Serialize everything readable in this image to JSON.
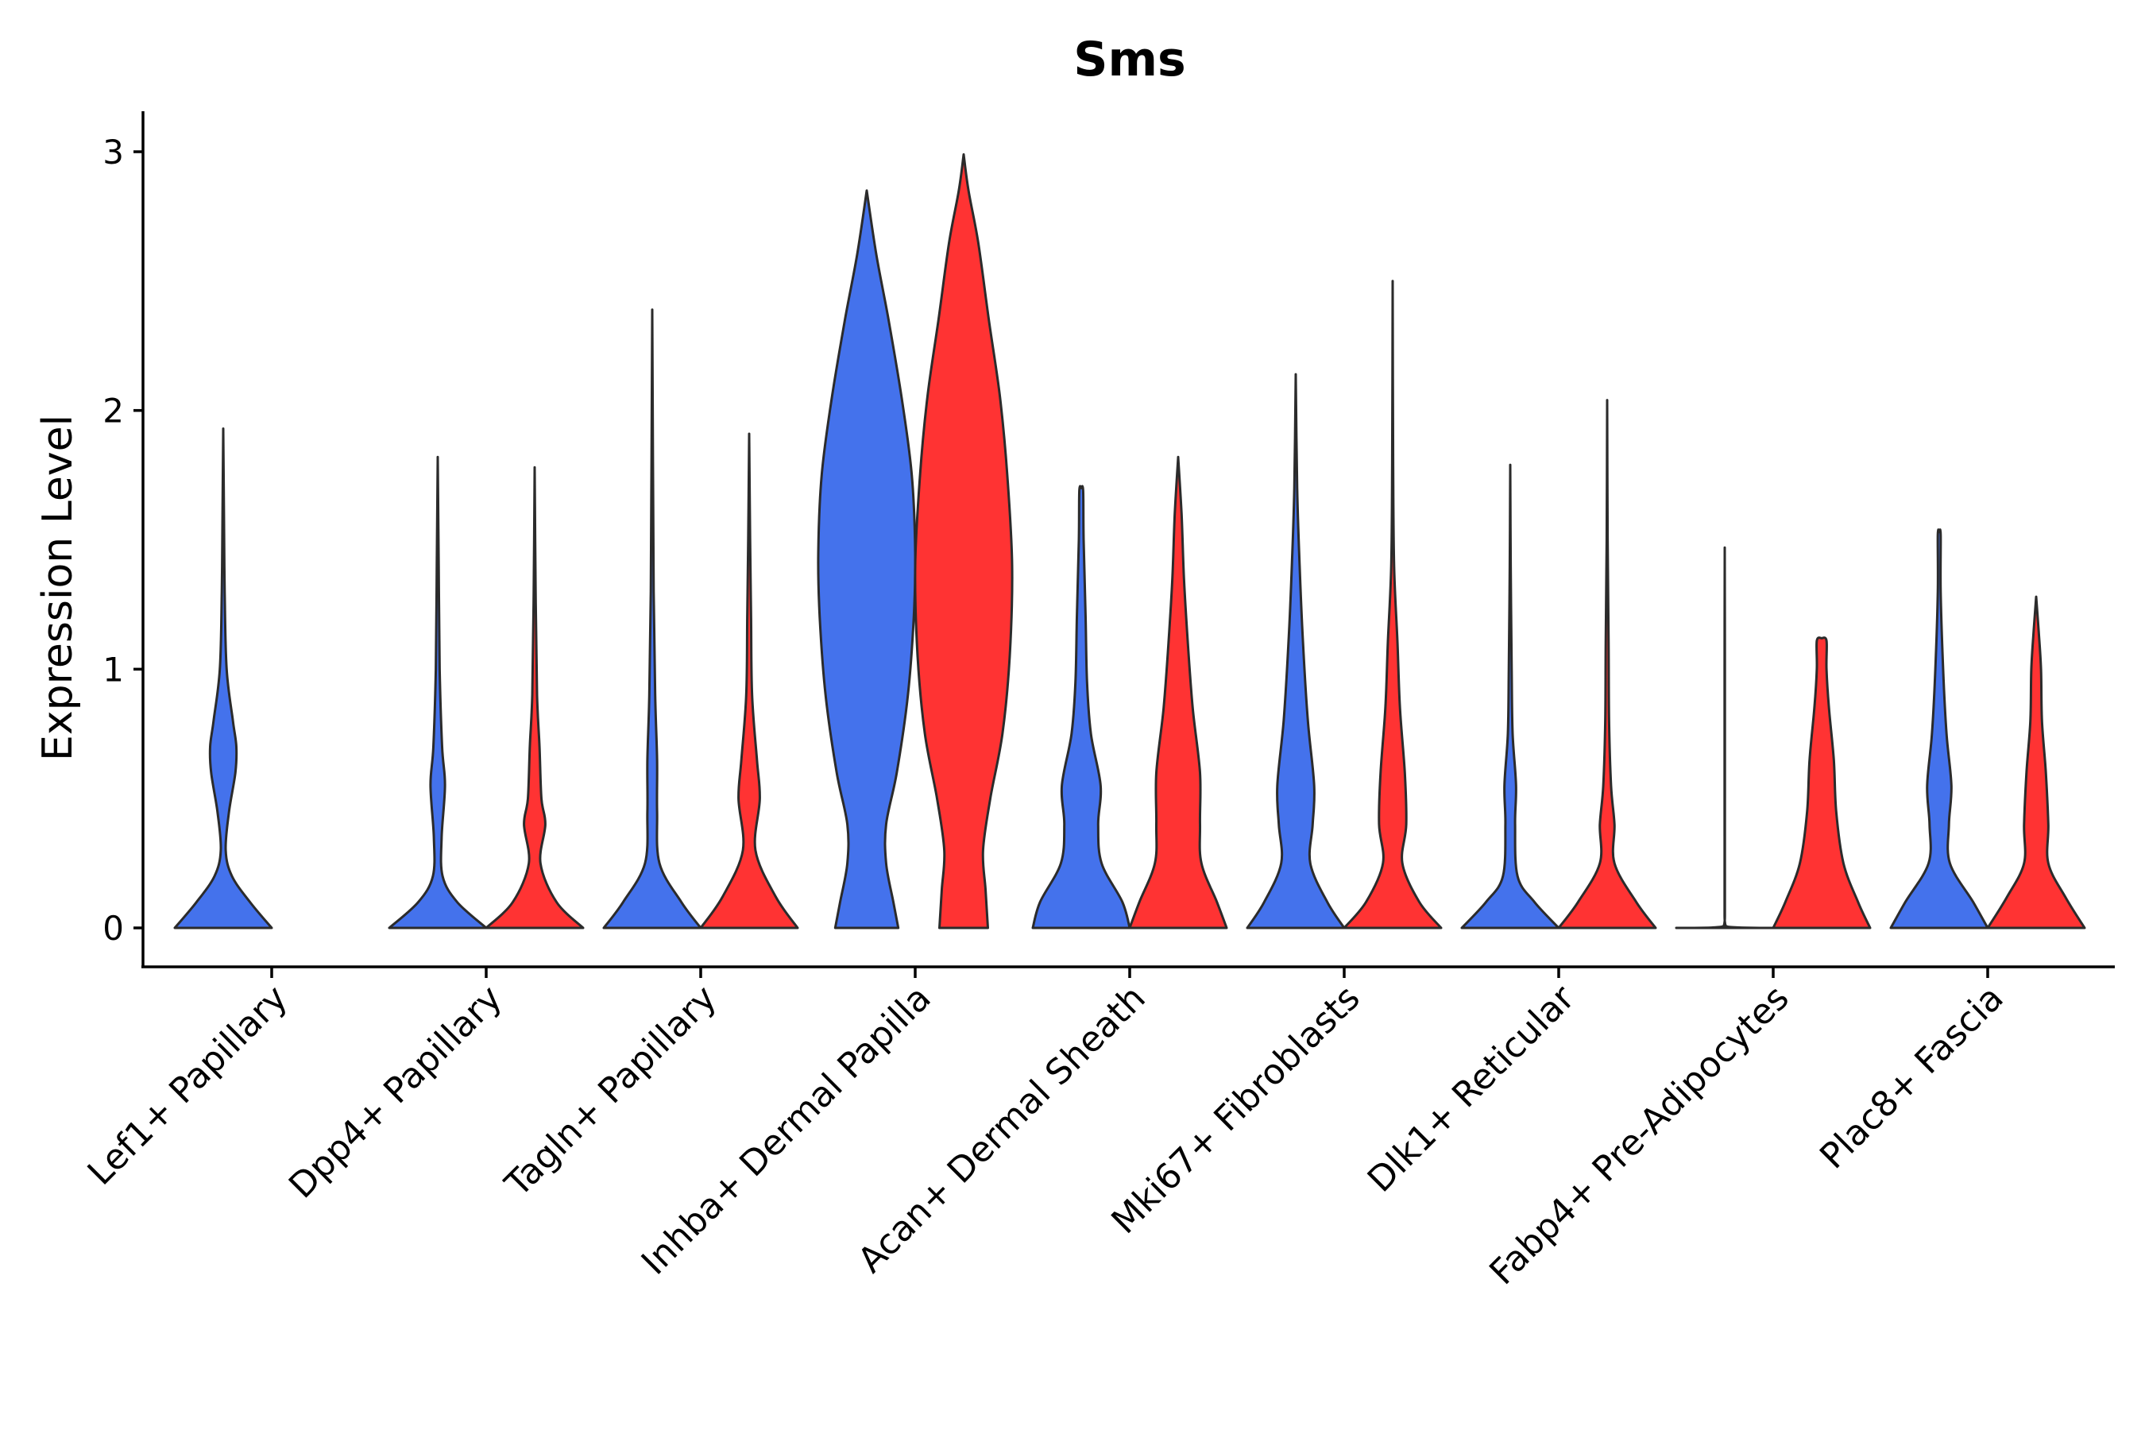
{
  "chart_data": {
    "type": "violin",
    "title": "Sms",
    "xlabel": "",
    "ylabel": "Expression Level",
    "ylim": [
      -0.15,
      3.15
    ],
    "yticks": [
      0,
      1,
      2,
      3
    ],
    "grid": false,
    "legend": "none",
    "colors": {
      "group_a": "#4472EC",
      "group_b": "#FF3333",
      "outline": "#2b2b2b"
    },
    "categories": [
      "Lef1+ Papillary",
      "Dpp4+ Papillary",
      "Tagln+ Papillary",
      "Inhba+ Dermal Papilla",
      "Acan+ Dermal Sheath",
      "Mki67+ Fibroblasts",
      "Dlk1+ Reticular",
      "Fabp4+ Pre-Adipocytes",
      "Plac8+ Fascia"
    ],
    "violins": [
      {
        "category": "Lef1+ Papillary",
        "group": "group_a",
        "max": 1.93,
        "density": [
          [
            0,
            1.0
          ],
          [
            0.1,
            0.55
          ],
          [
            0.2,
            0.18
          ],
          [
            0.3,
            0.05
          ],
          [
            0.45,
            0.12
          ],
          [
            0.6,
            0.25
          ],
          [
            0.7,
            0.27
          ],
          [
            0.8,
            0.2
          ],
          [
            1.0,
            0.07
          ],
          [
            1.3,
            0.03
          ],
          [
            1.6,
            0.015
          ],
          [
            1.93,
            0
          ]
        ]
      },
      {
        "category": "Dpp4+ Papillary",
        "group": "group_a",
        "max": 1.82,
        "density": [
          [
            0,
            1.0
          ],
          [
            0.1,
            0.4
          ],
          [
            0.2,
            0.1
          ],
          [
            0.35,
            0.08
          ],
          [
            0.55,
            0.15
          ],
          [
            0.7,
            0.09
          ],
          [
            1.0,
            0.04
          ],
          [
            1.4,
            0.02
          ],
          [
            1.82,
            0
          ]
        ]
      },
      {
        "category": "Dpp4+ Papillary",
        "group": "group_b",
        "max": 1.78,
        "density": [
          [
            0,
            1.0
          ],
          [
            0.1,
            0.45
          ],
          [
            0.25,
            0.12
          ],
          [
            0.4,
            0.22
          ],
          [
            0.5,
            0.14
          ],
          [
            0.7,
            0.1
          ],
          [
            0.9,
            0.05
          ],
          [
            1.3,
            0.02
          ],
          [
            1.78,
            0
          ]
        ]
      },
      {
        "category": "Tagln+ Papillary",
        "group": "group_a",
        "max": 2.39,
        "density": [
          [
            0,
            1.0
          ],
          [
            0.1,
            0.6
          ],
          [
            0.25,
            0.15
          ],
          [
            0.45,
            0.1
          ],
          [
            0.65,
            0.1
          ],
          [
            0.9,
            0.06
          ],
          [
            1.3,
            0.03
          ],
          [
            1.8,
            0.015
          ],
          [
            2.39,
            0
          ]
        ]
      },
      {
        "category": "Tagln+ Papillary",
        "group": "group_b",
        "max": 1.91,
        "density": [
          [
            0,
            1.0
          ],
          [
            0.12,
            0.55
          ],
          [
            0.3,
            0.13
          ],
          [
            0.5,
            0.22
          ],
          [
            0.65,
            0.16
          ],
          [
            0.9,
            0.06
          ],
          [
            1.2,
            0.04
          ],
          [
            1.5,
            0.02
          ],
          [
            1.91,
            0
          ]
        ]
      },
      {
        "category": "Inhba+ Dermal Papilla",
        "group": "group_a",
        "max": 2.85,
        "density": [
          [
            0,
            0.65
          ],
          [
            0.1,
            0.55
          ],
          [
            0.25,
            0.4
          ],
          [
            0.4,
            0.4
          ],
          [
            0.6,
            0.62
          ],
          [
            0.9,
            0.85
          ],
          [
            1.2,
            0.97
          ],
          [
            1.45,
            1.0
          ],
          [
            1.75,
            0.93
          ],
          [
            2.05,
            0.72
          ],
          [
            2.35,
            0.45
          ],
          [
            2.6,
            0.2
          ],
          [
            2.85,
            0
          ]
        ]
      },
      {
        "category": "Inhba+ Dermal Papilla",
        "group": "group_b",
        "max": 2.99,
        "density": [
          [
            0,
            0.5
          ],
          [
            0.15,
            0.45
          ],
          [
            0.3,
            0.4
          ],
          [
            0.5,
            0.55
          ],
          [
            0.75,
            0.8
          ],
          [
            1.05,
            0.95
          ],
          [
            1.4,
            1.0
          ],
          [
            1.75,
            0.9
          ],
          [
            2.05,
            0.75
          ],
          [
            2.35,
            0.52
          ],
          [
            2.65,
            0.3
          ],
          [
            2.85,
            0.1
          ],
          [
            2.99,
            0
          ]
        ]
      },
      {
        "category": "Acan+ Dermal Sheath",
        "group": "group_a",
        "max": 1.7,
        "density": [
          [
            0,
            1.0
          ],
          [
            0.1,
            0.85
          ],
          [
            0.25,
            0.42
          ],
          [
            0.4,
            0.35
          ],
          [
            0.55,
            0.4
          ],
          [
            0.75,
            0.2
          ],
          [
            0.95,
            0.12
          ],
          [
            1.2,
            0.09
          ],
          [
            1.5,
            0.05
          ],
          [
            1.69,
            0.04
          ],
          [
            1.7,
            0
          ]
        ]
      },
      {
        "category": "Acan+ Dermal Sheath",
        "group": "group_b",
        "max": 1.82,
        "density": [
          [
            0,
            1.0
          ],
          [
            0.1,
            0.8
          ],
          [
            0.25,
            0.48
          ],
          [
            0.4,
            0.45
          ],
          [
            0.6,
            0.45
          ],
          [
            0.85,
            0.3
          ],
          [
            1.1,
            0.2
          ],
          [
            1.35,
            0.12
          ],
          [
            1.6,
            0.07
          ],
          [
            1.82,
            0
          ]
        ]
      },
      {
        "category": "Mki67+ Fibroblasts",
        "group": "group_a",
        "max": 2.14,
        "density": [
          [
            0,
            1.0
          ],
          [
            0.1,
            0.65
          ],
          [
            0.25,
            0.3
          ],
          [
            0.4,
            0.35
          ],
          [
            0.55,
            0.38
          ],
          [
            0.8,
            0.25
          ],
          [
            1.1,
            0.15
          ],
          [
            1.4,
            0.08
          ],
          [
            1.7,
            0.03
          ],
          [
            2.14,
            0
          ]
        ]
      },
      {
        "category": "Mki67+ Fibroblasts",
        "group": "group_b",
        "max": 2.5,
        "density": [
          [
            0,
            1.0
          ],
          [
            0.1,
            0.55
          ],
          [
            0.25,
            0.2
          ],
          [
            0.4,
            0.28
          ],
          [
            0.6,
            0.25
          ],
          [
            0.85,
            0.15
          ],
          [
            1.1,
            0.1
          ],
          [
            1.4,
            0.03
          ],
          [
            1.8,
            0.01
          ],
          [
            2.5,
            0
          ]
        ]
      },
      {
        "category": "Dlk1+ Reticular",
        "group": "group_a",
        "max": 1.79,
        "density": [
          [
            0,
            1.0
          ],
          [
            0.1,
            0.5
          ],
          [
            0.2,
            0.15
          ],
          [
            0.4,
            0.1
          ],
          [
            0.55,
            0.12
          ],
          [
            0.75,
            0.05
          ],
          [
            1.0,
            0.03
          ],
          [
            1.4,
            0.01
          ],
          [
            1.79,
            0
          ]
        ]
      },
      {
        "category": "Dlk1+ Reticular",
        "group": "group_b",
        "max": 2.04,
        "density": [
          [
            0,
            1.0
          ],
          [
            0.1,
            0.6
          ],
          [
            0.25,
            0.15
          ],
          [
            0.4,
            0.15
          ],
          [
            0.55,
            0.08
          ],
          [
            0.8,
            0.04
          ],
          [
            1.1,
            0.03
          ],
          [
            1.5,
            0.01
          ],
          [
            2.04,
            0
          ]
        ]
      },
      {
        "category": "Fabp4+ Pre-Adipocytes",
        "group": "group_a",
        "max": 1.47,
        "density": [
          [
            0,
            1.0
          ],
          [
            0.006,
            0.02
          ],
          [
            0.05,
            0.004
          ],
          [
            0.5,
            0.003
          ],
          [
            1.0,
            0.003
          ],
          [
            1.47,
            0
          ]
        ]
      },
      {
        "category": "Fabp4+ Pre-Adipocytes",
        "group": "group_b",
        "max": 1.12,
        "density": [
          [
            0,
            1.0
          ],
          [
            0.1,
            0.75
          ],
          [
            0.25,
            0.45
          ],
          [
            0.45,
            0.3
          ],
          [
            0.65,
            0.25
          ],
          [
            0.85,
            0.15
          ],
          [
            1.0,
            0.1
          ],
          [
            1.11,
            0.1
          ],
          [
            1.12,
            0
          ]
        ]
      },
      {
        "category": "Plac8+ Fascia",
        "group": "group_a",
        "max": 1.53,
        "density": [
          [
            0,
            1.0
          ],
          [
            0.1,
            0.7
          ],
          [
            0.25,
            0.22
          ],
          [
            0.4,
            0.2
          ],
          [
            0.55,
            0.25
          ],
          [
            0.75,
            0.15
          ],
          [
            1.0,
            0.08
          ],
          [
            1.3,
            0.03
          ],
          [
            1.52,
            0.03
          ],
          [
            1.53,
            0
          ]
        ]
      },
      {
        "category": "Plac8+ Fascia",
        "group": "group_b",
        "max": 1.28,
        "density": [
          [
            0,
            1.0
          ],
          [
            0.12,
            0.6
          ],
          [
            0.25,
            0.25
          ],
          [
            0.4,
            0.25
          ],
          [
            0.6,
            0.2
          ],
          [
            0.8,
            0.12
          ],
          [
            1.0,
            0.1
          ],
          [
            1.15,
            0.05
          ],
          [
            1.28,
            0
          ]
        ]
      }
    ]
  }
}
